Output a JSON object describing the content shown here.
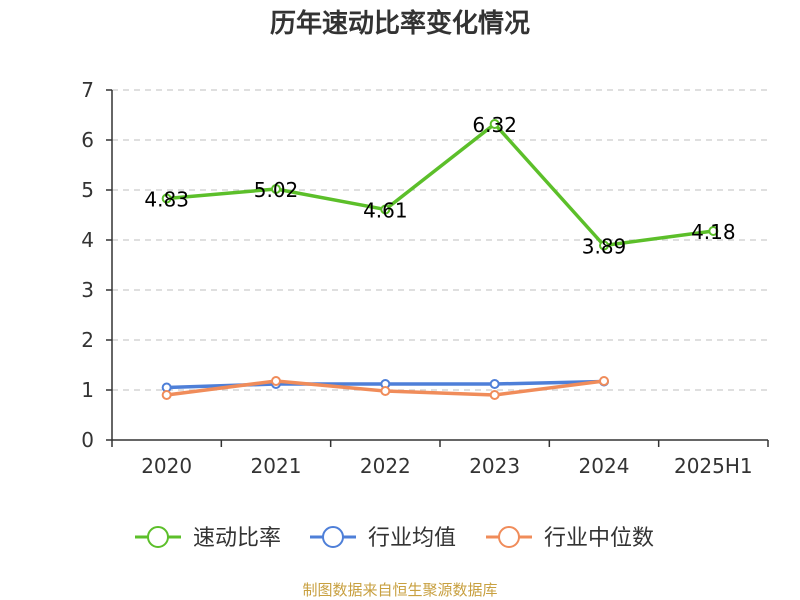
{
  "chart_data": {
    "type": "line",
    "title": "历年速动比率变化情况",
    "categories": [
      "2020",
      "2021",
      "2022",
      "2023",
      "2024",
      "2025H1"
    ],
    "ylim": [
      0,
      7
    ],
    "yticks": [
      0,
      1,
      2,
      3,
      4,
      5,
      6,
      7
    ],
    "grid": true,
    "legend_position": "bottom",
    "series": [
      {
        "name": "速动比率",
        "color": "#5cbf2a",
        "values": [
          4.83,
          5.02,
          4.61,
          6.32,
          3.89,
          4.18
        ],
        "labels": [
          "4.83",
          "5.02",
          "4.61",
          "6.32",
          "3.89",
          "4.18"
        ]
      },
      {
        "name": "行业均值",
        "color": "#4e7fd8",
        "values": [
          1.05,
          1.12,
          1.12,
          1.12,
          1.17,
          null
        ]
      },
      {
        "name": "行业中位数",
        "color": "#f08c5a",
        "values": [
          0.9,
          1.18,
          0.98,
          0.9,
          1.18,
          null
        ]
      }
    ]
  },
  "footer": {
    "source": "制图数据来自恒生聚源数据库"
  }
}
